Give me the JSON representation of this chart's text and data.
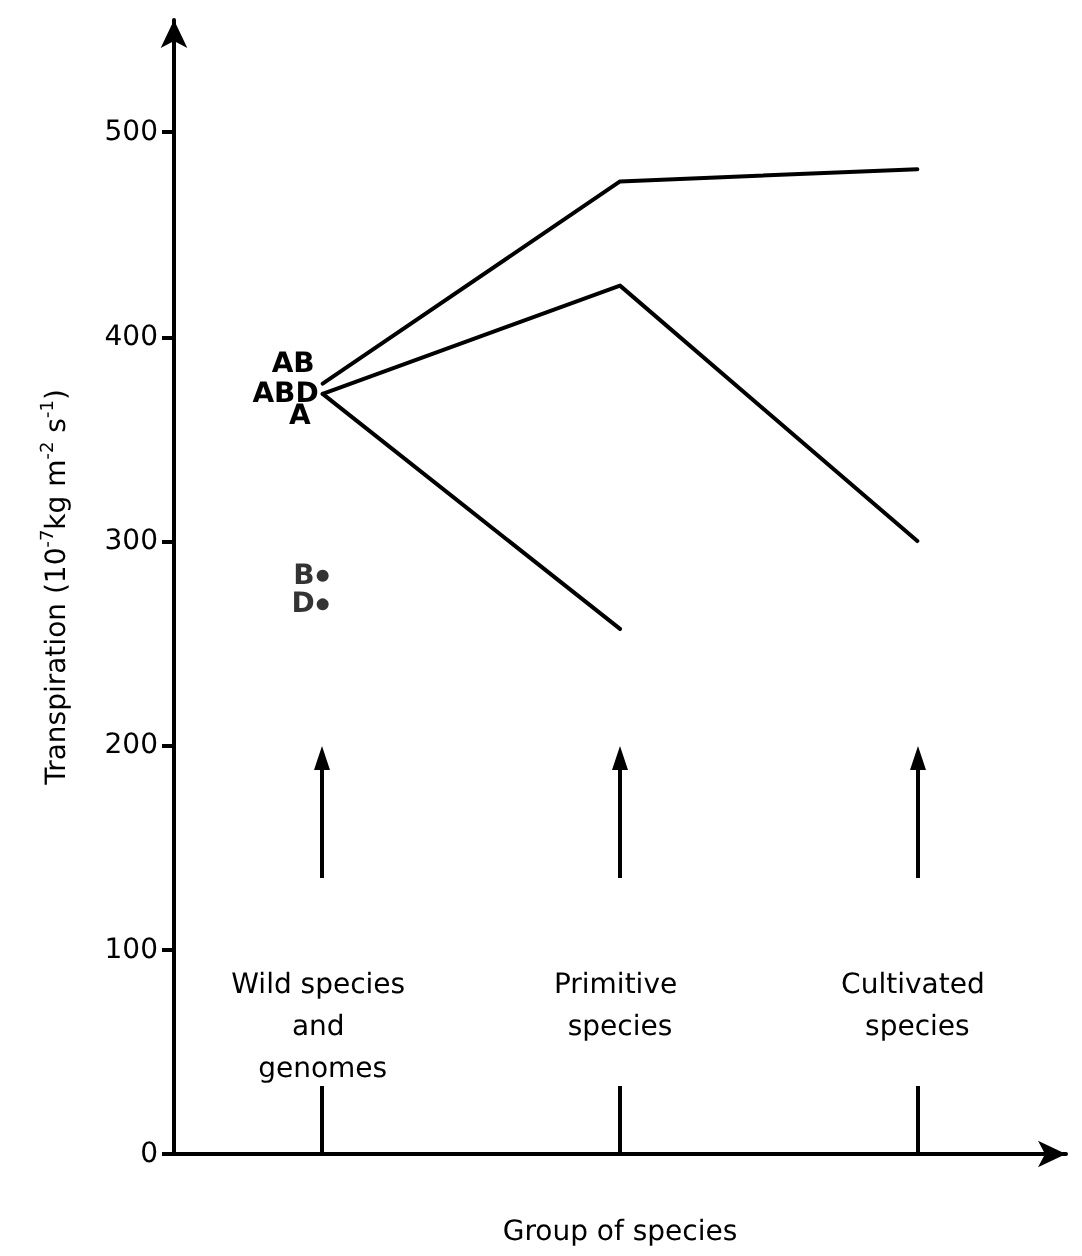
{
  "chart_data": {
    "type": "line",
    "xlabel": "Group of species",
    "ylabel": "Transpiration (10$^{-7}$kg m$^{-2}$ s$^{-1}$)",
    "categories": [
      "Wild species and genomes",
      "Primitive species",
      "Cultivated species"
    ],
    "ylim": [
      0,
      555
    ],
    "yticks": [
      0,
      100,
      200,
      300,
      400,
      500
    ],
    "marker": "none",
    "line_style": "solid",
    "series": [
      {
        "name": "AB",
        "color": "#000000",
        "values": [
          377,
          476,
          482
        ]
      },
      {
        "name": "ABD",
        "color": "#000000",
        "values": [
          372,
          425,
          300
        ]
      },
      {
        "name": "A",
        "color": "#000000",
        "values": [
          372,
          257,
          null
        ]
      },
      {
        "name": "B",
        "type": "scatter",
        "marker": "circle",
        "color": "#000000",
        "x": [
          "Wild species and genomes"
        ],
        "values": [
          283
        ]
      },
      {
        "name": "D",
        "type": "scatter",
        "marker": "circle",
        "color": "#000000",
        "x": [
          "Wild species and genomes"
        ],
        "values": [
          269
        ]
      }
    ]
  }
}
